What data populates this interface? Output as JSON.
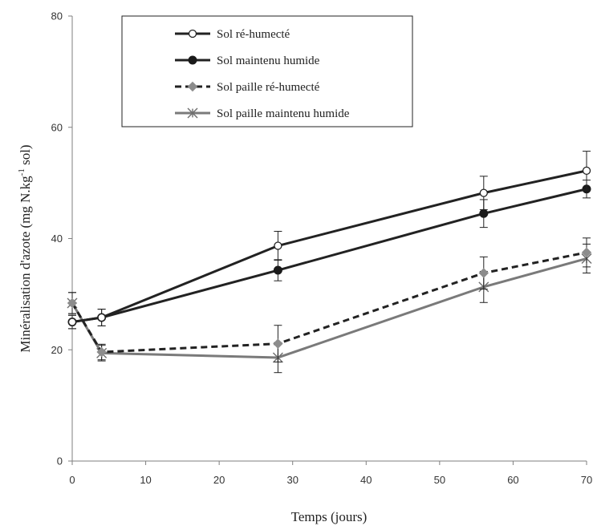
{
  "chart_data": {
    "type": "line",
    "xlabel": "Temps (jours)",
    "ylabel_main": "Minéralisation d'azote (mg N.kg",
    "ylabel_sup": "-1",
    "ylabel_end": " sol)",
    "xlim": [
      0,
      70
    ],
    "ylim": [
      0,
      80
    ],
    "xticks": [
      "0",
      "10",
      "20",
      "30",
      "40",
      "50",
      "60",
      "70"
    ],
    "yticks": [
      "0",
      "20",
      "40",
      "60",
      "80"
    ],
    "grid": false,
    "legend_position": "top-left",
    "series": [
      {
        "name": "Sol ré-humecté",
        "marker": "open-circle",
        "line_style": "solid",
        "color": "#222222",
        "points": [
          {
            "x": 0,
            "y": 25.0,
            "err": 1.2
          },
          {
            "x": 4,
            "y": 25.8,
            "err": 1.5
          },
          {
            "x": 28,
            "y": 38.7,
            "err": 2.6
          },
          {
            "x": 56,
            "y": 48.2,
            "err": 3.0
          },
          {
            "x": 70,
            "y": 52.2,
            "err": 3.5
          }
        ]
      },
      {
        "name": "Sol maintenu humide",
        "marker": "filled-circle",
        "line_style": "solid",
        "color": "#222222",
        "points": [
          {
            "x": 0,
            "y": 25.0,
            "err": 1.2
          },
          {
            "x": 4,
            "y": 25.8,
            "err": 1.5
          },
          {
            "x": 28,
            "y": 34.3,
            "err": 1.9
          },
          {
            "x": 56,
            "y": 44.5,
            "err": 2.5
          },
          {
            "x": 70,
            "y": 48.9,
            "err": 1.6
          }
        ]
      },
      {
        "name": "Sol paille ré-humecté",
        "marker": "gray-diamond",
        "line_style": "dashed",
        "color": "#222222",
        "points": [
          {
            "x": 0,
            "y": 28.4,
            "err": 1.9
          },
          {
            "x": 4,
            "y": 19.6,
            "err": 1.4
          },
          {
            "x": 28,
            "y": 21.1,
            "err": 3.3
          },
          {
            "x": 56,
            "y": 33.8,
            "err": 2.9
          },
          {
            "x": 70,
            "y": 37.5,
            "err": 2.6
          }
        ]
      },
      {
        "name": "Sol paille maintenu humide",
        "marker": "star",
        "line_style": "solid",
        "color": "#7a7a7a",
        "points": [
          {
            "x": 0,
            "y": 28.4,
            "err": 1.9
          },
          {
            "x": 4,
            "y": 19.4,
            "err": 1.4
          },
          {
            "x": 28,
            "y": 18.6,
            "err": 2.7
          },
          {
            "x": 56,
            "y": 31.3,
            "err": 2.8
          },
          {
            "x": 70,
            "y": 36.4,
            "err": 2.6
          }
        ]
      }
    ]
  }
}
